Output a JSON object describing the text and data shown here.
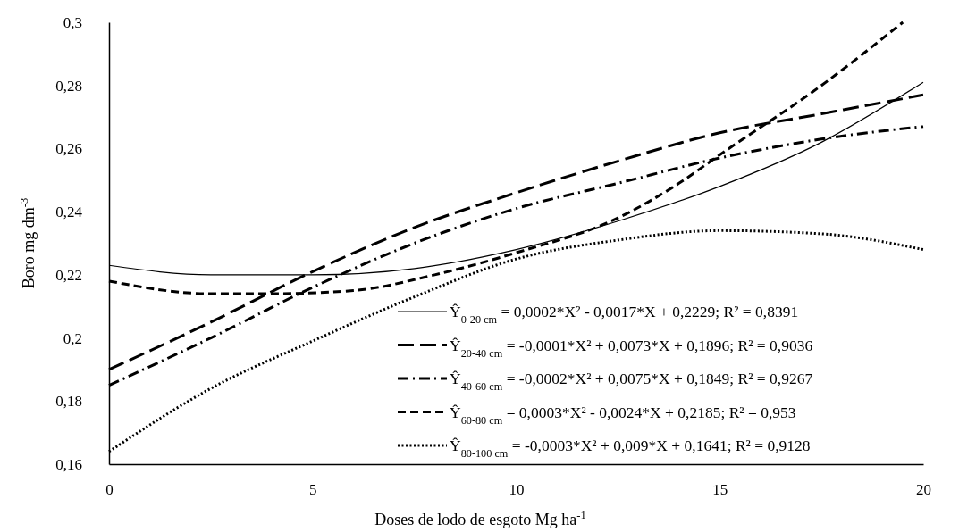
{
  "chart_data": {
    "type": "line",
    "xlabel": "Doses de lodo de esgoto Mg ha$^{-1}$",
    "ylabel": "Boro  mg dm$^{-3}$",
    "xlim": [
      0,
      20
    ],
    "xticks": [
      0,
      5,
      10,
      15,
      20
    ],
    "ylim": [
      0.16,
      0.3
    ],
    "yticks": [
      {
        "value": 0.16,
        "label": "0,16"
      },
      {
        "value": 0.18,
        "label": "0,18"
      },
      {
        "value": 0.2,
        "label": "0,2"
      },
      {
        "value": 0.22,
        "label": "0,22"
      },
      {
        "value": 0.24,
        "label": "0,24"
      },
      {
        "value": 0.26,
        "label": "0,26"
      },
      {
        "value": 0.28,
        "label": "0,28"
      },
      {
        "value": 0.3,
        "label": "0,3"
      }
    ],
    "grid": false,
    "legend": "bottom right",
    "marker": "none",
    "series": [
      {
        "name": "Ŷ$_{0-20 cm}$ = 0,0002*X² - 0,0017*X + 0,2229; R² = 0,8391",
        "color": "#000000",
        "line_style": "solid",
        "x": [
          0,
          2.5,
          5,
          7.5,
          10,
          12.5,
          15,
          17.5,
          20
        ],
        "values": [
          0.223,
          0.22,
          0.22,
          0.222,
          0.228,
          0.237,
          0.248,
          0.262,
          0.281
        ]
      },
      {
        "name": "Ŷ$_{20-40 cm}$ = -0,0001*X² + 0,0073*X + 0,1896; R² = 0,9036",
        "color": "#000000",
        "line_style": "longdash",
        "x": [
          0,
          2.5,
          5,
          7.5,
          10,
          12.5,
          15,
          17.5,
          20
        ],
        "values": [
          0.19,
          0.205,
          0.221,
          0.235,
          0.246,
          0.256,
          0.265,
          0.271,
          0.277
        ]
      },
      {
        "name": "Ŷ$_{40-60 cm}$ = -0,0002*X² + 0,0075*X + 0,1849; R² = 0,9267",
        "color": "#000000",
        "line_style": "dashdot",
        "x": [
          0,
          2.5,
          5,
          7.5,
          10,
          12.5,
          15,
          17.5,
          20
        ],
        "values": [
          0.185,
          0.2,
          0.216,
          0.23,
          0.241,
          0.249,
          0.257,
          0.263,
          0.267
        ]
      },
      {
        "name": "Ŷ$_{60-80 cm}$ = 0,0003*X² - 0,0024*X + 0,2185; R² = 0,953",
        "color": "#000000",
        "line_style": "dashed",
        "x": [
          0,
          2.5,
          4,
          6,
          8,
          10,
          12.5,
          14,
          15,
          17.5,
          19.5
        ],
        "values": [
          0.218,
          0.214,
          0.214,
          0.215,
          0.22,
          0.227,
          0.238,
          0.249,
          0.258,
          0.28,
          0.3
        ]
      },
      {
        "name": "Ŷ$_{80-100 cm}$ = -0,0003*X² + 0,009*X + 0,1641; R² = 0,9128",
        "color": "#000000",
        "line_style": "dotted",
        "x": [
          0,
          2.5,
          5,
          7.5,
          10,
          12.5,
          15,
          17.5,
          20
        ],
        "values": [
          0.164,
          0.184,
          0.199,
          0.213,
          0.225,
          0.231,
          0.234,
          0.233,
          0.228
        ]
      }
    ]
  }
}
